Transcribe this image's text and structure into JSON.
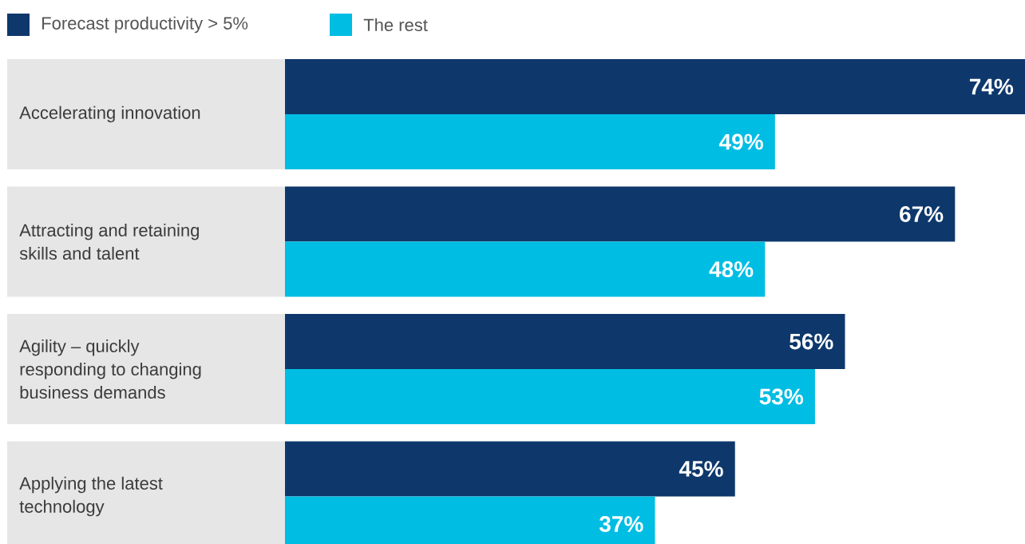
{
  "chart_data": {
    "type": "bar",
    "orientation": "horizontal",
    "categories": [
      "Accelerating innovation",
      "Attracting and retaining skills and talent",
      "Agility – quickly responding to changing business demands",
      "Applying the latest technology"
    ],
    "series": [
      {
        "name": "Forecast productivity > 5%",
        "color": "#0e386c",
        "values": [
          74,
          67,
          56,
          45
        ],
        "value_labels": [
          "74%",
          "67%",
          "56%",
          "45%"
        ]
      },
      {
        "name": "The rest",
        "color": "#00bde3",
        "values": [
          49,
          48,
          53,
          37
        ],
        "value_labels": [
          "49%",
          "48%",
          "53%",
          "37%"
        ]
      }
    ],
    "legend": "top left"
  }
}
